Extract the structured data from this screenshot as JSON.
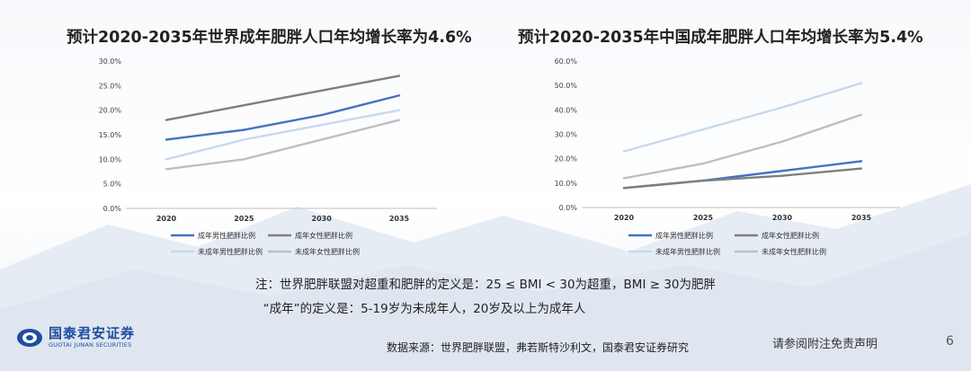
{
  "left": {
    "title": "预计2020-2035年世界成年肥胖人口年均增长率为4.6%",
    "chart_data": {
      "type": "line",
      "title": "预计2020-2035年世界成年肥胖人口年均增长率为4.6%",
      "xlabel": "",
      "ylabel": "",
      "x": [
        "2020",
        "2025",
        "2030",
        "2035"
      ],
      "ylim": [
        0,
        30
      ],
      "yticks": [
        "0.0%",
        "5.0%",
        "10.0%",
        "15.0%",
        "20.0%",
        "25.0%",
        "30.0%"
      ],
      "grid": false,
      "legend_position": "bottom",
      "series": [
        {
          "name": "成年男性肥胖比例",
          "values": [
            14,
            16,
            19,
            23
          ],
          "color": "#4472c4"
        },
        {
          "name": "成年女性肥胖比例",
          "values": [
            18,
            21,
            24,
            27
          ],
          "color": "#7f7f7f"
        },
        {
          "name": "未成年男性肥胖比例",
          "values": [
            10,
            14,
            17,
            20
          ],
          "color": "#c9d8ee"
        },
        {
          "name": "未成年女性肥胖比例",
          "values": [
            8,
            10,
            14,
            18
          ],
          "color": "#bfbfbf"
        }
      ]
    }
  },
  "right": {
    "title": "预计2020-2035年中国成年肥胖人口年均增长率为5.4%",
    "chart_data": {
      "type": "line",
      "title": "预计2020-2035年中国成年肥胖人口年均增长率为5.4%",
      "xlabel": "",
      "ylabel": "",
      "x": [
        "2020",
        "2025",
        "2030",
        "2035"
      ],
      "ylim": [
        0,
        60
      ],
      "yticks": [
        "0.0%",
        "10.0%",
        "20.0%",
        "30.0%",
        "40.0%",
        "50.0%",
        "60.0%"
      ],
      "grid": false,
      "legend_position": "bottom",
      "series": [
        {
          "name": "成年男性肥胖比例",
          "values": [
            8,
            11,
            15,
            19
          ],
          "color": "#4472c4"
        },
        {
          "name": "成年女性肥胖比例",
          "values": [
            8,
            11,
            13,
            16
          ],
          "color": "#7f7f7f"
        },
        {
          "name": "未成年男性肥胖比例",
          "values": [
            23,
            32,
            41,
            51
          ],
          "color": "#c9d8ee"
        },
        {
          "name": "未成年女性肥胖比例",
          "values": [
            12,
            18,
            27,
            38
          ],
          "color": "#bfbfbf"
        }
      ]
    }
  },
  "notes": {
    "line1": "注：世界肥胖联盟对超重和肥胖的定义是：25 ≤ BMI < 30为超重，BMI ≥ 30为肥胖",
    "line2": "“成年”的定义是：5-19岁为未成年人，20岁及以上为成年人"
  },
  "footer": {
    "logo_cn": "国泰君安证券",
    "logo_en": "GUOTAI JUNAN SECURITIES",
    "source": "数据来源：世界肥胖联盟，弗若斯特沙利文，国泰君安证券研究",
    "disclaimer": "请参阅附注免责声明",
    "page_number": "6"
  }
}
